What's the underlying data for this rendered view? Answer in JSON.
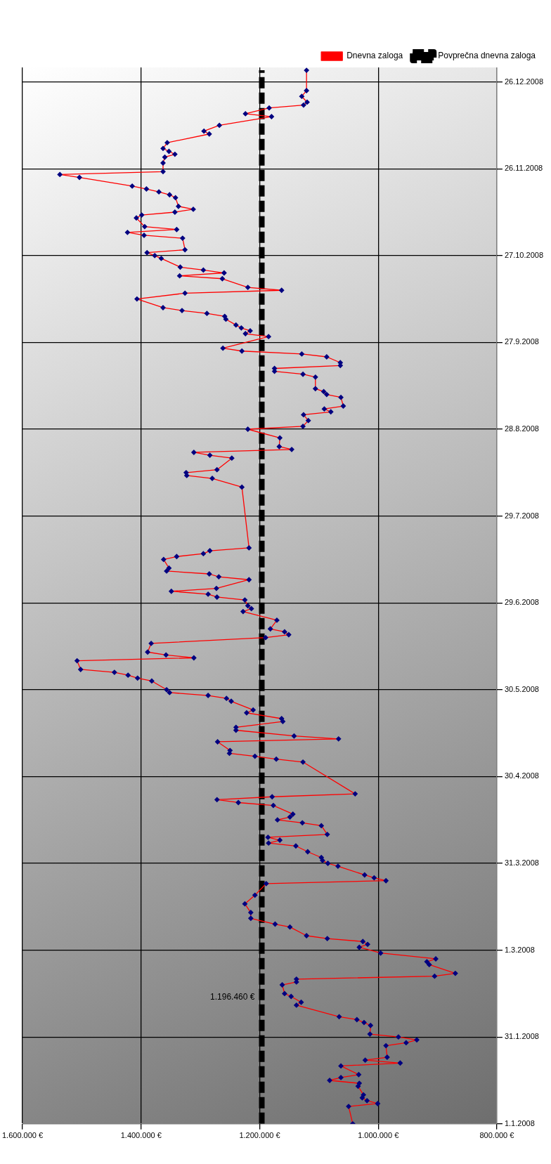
{
  "chart_data": {
    "type": "line",
    "orientation": "horizontal",
    "x": [
      "2008-01-01",
      "2008-01-07",
      "2008-01-08",
      "2008-01-09",
      "2008-01-10",
      "2008-01-11",
      "2008-01-14",
      "2008-01-15",
      "2008-01-16",
      "2008-01-17",
      "2008-01-18",
      "2008-01-21",
      "2008-01-22",
      "2008-01-23",
      "2008-01-24",
      "2008-01-28",
      "2008-01-29",
      "2008-01-30",
      "2008-01-31",
      "2008-02-01",
      "2008-02-04",
      "2008-02-05",
      "2008-02-06",
      "2008-02-07",
      "2008-02-11",
      "2008-02-12",
      "2008-02-14",
      "2008-02-15",
      "2008-02-18",
      "2008-02-19",
      "2008-02-20",
      "2008-02-21",
      "2008-02-22",
      "2008-02-25",
      "2008-02-26",
      "2008-02-27",
      "2008-02-29",
      "2008-03-02",
      "2008-03-03",
      "2008-03-04",
      "2008-03-05",
      "2008-03-06",
      "2008-03-09",
      "2008-03-10",
      "2008-03-12",
      "2008-03-14",
      "2008-03-17",
      "2008-03-20",
      "2008-03-24",
      "2008-03-25",
      "2008-03-26",
      "2008-03-27",
      "2008-03-30",
      "2008-03-31",
      "2008-04-01",
      "2008-04-02",
      "2008-04-04",
      "2008-04-06",
      "2008-04-07",
      "2008-04-08",
      "2008-04-09",
      "2008-04-10",
      "2008-04-13",
      "2008-04-14",
      "2008-04-15",
      "2008-04-16",
      "2008-04-17",
      "2008-04-20",
      "2008-04-21",
      "2008-04-22",
      "2008-04-23",
      "2008-04-24",
      "2008-05-05",
      "2008-05-06",
      "2008-05-07",
      "2008-05-08",
      "2008-05-09",
      "2008-05-12",
      "2008-05-13",
      "2008-05-14",
      "2008-05-16",
      "2008-05-17",
      "2008-05-19",
      "2008-05-20",
      "2008-05-22",
      "2008-05-23",
      "2008-05-26",
      "2008-05-27",
      "2008-05-28",
      "2008-05-29",
      "2008-05-30",
      "2008-06-02",
      "2008-06-03",
      "2008-06-04",
      "2008-06-05",
      "2008-06-06",
      "2008-06-09",
      "2008-06-10",
      "2008-06-11",
      "2008-06-12",
      "2008-06-15",
      "2008-06-17",
      "2008-06-18",
      "2008-06-19",
      "2008-06-20",
      "2008-06-23",
      "2008-06-26",
      "2008-06-27",
      "2008-06-28",
      "2008-06-30",
      "2008-07-01",
      "2008-07-02",
      "2008-07-03",
      "2008-07-04",
      "2008-07-07",
      "2008-07-08",
      "2008-07-09",
      "2008-07-10",
      "2008-07-11",
      "2008-07-14",
      "2008-07-15",
      "2008-07-16",
      "2008-07-17",
      "2008-07-18",
      "2008-08-08",
      "2008-08-11",
      "2008-08-12",
      "2008-08-13",
      "2008-08-14",
      "2008-08-18",
      "2008-08-19",
      "2008-08-20",
      "2008-08-21",
      "2008-08-22",
      "2008-08-25",
      "2008-08-28",
      "2008-08-29",
      "2008-08-31",
      "2008-09-02",
      "2008-09-03",
      "2008-09-04",
      "2008-09-05",
      "2008-09-08",
      "2008-09-09",
      "2008-09-10",
      "2008-09-11",
      "2008-09-15",
      "2008-09-16",
      "2008-09-17",
      "2008-09-18",
      "2008-09-19",
      "2008-09-20",
      "2008-09-22",
      "2008-09-23",
      "2008-09-24",
      "2008-09-25",
      "2008-09-29",
      "2008-09-30",
      "2008-10-01",
      "2008-10-02",
      "2008-10-03",
      "2008-10-05",
      "2008-10-06",
      "2008-10-07",
      "2008-10-08",
      "2008-10-09",
      "2008-10-12",
      "2008-10-14",
      "2008-10-15",
      "2008-10-16",
      "2008-10-19",
      "2008-10-20",
      "2008-10-21",
      "2008-10-22",
      "2008-10-23",
      "2008-10-26",
      "2008-10-27",
      "2008-10-28",
      "2008-10-29",
      "2008-11-02",
      "2008-11-03",
      "2008-11-04",
      "2008-11-05",
      "2008-11-06",
      "2008-11-09",
      "2008-11-10",
      "2008-11-11",
      "2008-11-12",
      "2008-11-13",
      "2008-11-16",
      "2008-11-17",
      "2008-11-18",
      "2008-11-19",
      "2008-11-20",
      "2008-11-23",
      "2008-11-24",
      "2008-11-25",
      "2008-11-28",
      "2008-11-30",
      "2008-12-01",
      "2008-12-02",
      "2008-12-03",
      "2008-12-05",
      "2008-12-08",
      "2008-12-09",
      "2008-12-11",
      "2008-12-14",
      "2008-12-15",
      "2008-12-17",
      "2008-12-18",
      "2008-12-19",
      "2008-12-21",
      "2008-12-23",
      "2008-12-30"
    ],
    "series": [
      {
        "name": "Dnevna zaloga",
        "color": "#ff0000",
        "marker": "diamond",
        "values": [
          1043000,
          1050000,
          1001000,
          1019000,
          1027000,
          1025000,
          1034000,
          1032000,
          1082000,
          1063000,
          1033000,
          1063000,
          963000,
          1022000,
          985000,
          987000,
          953000,
          935000,
          966000,
          1014000,
          1013000,
          1024000,
          1036000,
          1066000,
          1138000,
          1130000,
          1147000,
          1158000,
          1162000,
          1138000,
          1138000,
          905000,
          870000,
          914000,
          918000,
          903000,
          996000,
          1032000,
          1018000,
          1026000,
          1086000,
          1121000,
          1149000,
          1174000,
          1215000,
          1215000,
          1225000,
          1208000,
          1189000,
          987000,
          1007000,
          1023000,
          1068000,
          1085000,
          1094000,
          1096000,
          1119000,
          1139000,
          1185000,
          1166000,
          1186000,
          1086000,
          1096000,
          1128000,
          1170000,
          1149000,
          1144000,
          1177000,
          1236000,
          1272000,
          1179000,
          1039000,
          1127000,
          1172000,
          1208000,
          1251000,
          1250000,
          1271000,
          1067000,
          1142000,
          1240000,
          1240000,
          1161000,
          1163000,
          1222000,
          1211000,
          1248000,
          1256000,
          1287000,
          1352000,
          1357000,
          1382000,
          1406000,
          1422000,
          1445000,
          1502000,
          1508000,
          1311000,
          1358000,
          1389000,
          1383000,
          1190000,
          1151000,
          1158000,
          1182000,
          1171000,
          1228000,
          1214000,
          1220000,
          1225000,
          1272000,
          1287000,
          1349000,
          1273000,
          1218000,
          1269000,
          1285000,
          1357000,
          1353000,
          1362000,
          1340000,
          1295000,
          1284000,
          1218000,
          1230000,
          1280000,
          1323000,
          1324000,
          1272000,
          1247000,
          1284000,
          1311000,
          1146000,
          1167000,
          1166000,
          1220000,
          1127000,
          1118000,
          1126000,
          1080000,
          1091000,
          1059000,
          1063000,
          1087000,
          1092000,
          1106000,
          1106000,
          1127000,
          1175000,
          1175000,
          1064000,
          1064000,
          1087000,
          1129000,
          1230000,
          1262000,
          1185000,
          1224000,
          1216000,
          1231000,
          1240000,
          1257000,
          1259000,
          1289000,
          1331000,
          1363000,
          1407000,
          1326000,
          1163000,
          1220000,
          1263000,
          1335000,
          1260000,
          1295000,
          1334000,
          1366000,
          1377000,
          1390000,
          1326000,
          1330000,
          1395000,
          1423000,
          1340000,
          1394000,
          1408000,
          1399000,
          1343000,
          1312000,
          1337000,
          1342000,
          1352000,
          1370000,
          1391000,
          1415000,
          1504000,
          1537000,
          1363000,
          1363000,
          1360000,
          1343000,
          1353000,
          1363000,
          1356000,
          1285000,
          1294000,
          1268000,
          1180000,
          1224000,
          1184000,
          1126000,
          1120000,
          1129000,
          1121000,
          1121000
        ]
      },
      {
        "name": "Povprečna dnevna zaloga",
        "color": "#000000",
        "marker": "none",
        "line_style": "dashed",
        "x": [
          "2008-01-01",
          "2008-12-30"
        ],
        "values": [
          1196460,
          1196460
        ]
      }
    ],
    "xlim": [
      1600000,
      800000
    ],
    "xticks": [
      {
        "value": 1600000,
        "label": "1.600.000 €"
      },
      {
        "value": 1400000,
        "label": "1.400.000 €"
      },
      {
        "value": 1200000,
        "label": "1.200.000 €"
      },
      {
        "value": 1000000,
        "label": "1.000.000 €"
      },
      {
        "value": 800000,
        "label": "800.000 €"
      }
    ],
    "ylim": [
      "2008-01-01",
      "2008-12-31"
    ],
    "yticks": [
      {
        "value": "2008-01-01",
        "label": "1.1.2008"
      },
      {
        "value": "2008-01-31",
        "label": "31.1.2008"
      },
      {
        "value": "2008-03-01",
        "label": "1.3.2008"
      },
      {
        "value": "2008-03-31",
        "label": "31.3.2008"
      },
      {
        "value": "2008-04-30",
        "label": "30.4.2008"
      },
      {
        "value": "2008-05-30",
        "label": "30.5.2008"
      },
      {
        "value": "2008-06-29",
        "label": "29.6.2008"
      },
      {
        "value": "2008-07-29",
        "label": "29.7.2008"
      },
      {
        "value": "2008-08-28",
        "label": "28.8.2008"
      },
      {
        "value": "2008-09-27",
        "label": "27.9.2008"
      },
      {
        "value": "2008-10-27",
        "label": "27.10.2008"
      },
      {
        "value": "2008-11-26",
        "label": "26.11.2008"
      },
      {
        "value": "2008-12-26",
        "label": "26.12.2008"
      }
    ],
    "grid": true,
    "legend": "top right",
    "annotations": [
      "1.196.460 €"
    ]
  }
}
